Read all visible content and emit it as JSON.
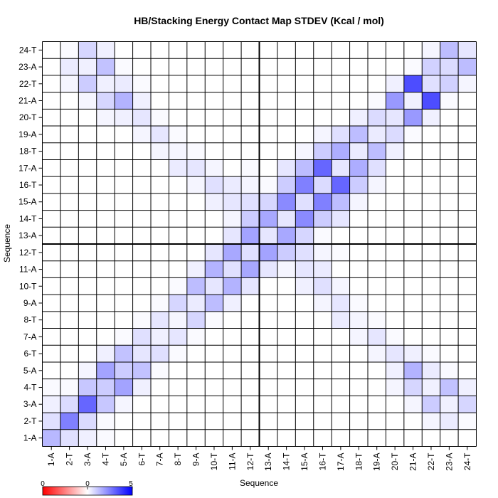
{
  "chart_data": {
    "type": "heatmap",
    "title": "HB/Stacking Energy Contact Map STDEV (Kcal / mol)",
    "xlabel": "Sequence",
    "ylabel": "Sequence",
    "labels": [
      "1-A",
      "2-T",
      "3-A",
      "4-T",
      "5-A",
      "6-T",
      "7-A",
      "8-T",
      "9-A",
      "10-T",
      "11-A",
      "12-T",
      "13-A",
      "14-T",
      "15-A",
      "16-T",
      "17-A",
      "18-T",
      "19-A",
      "20-T",
      "21-A",
      "22-T",
      "23-A",
      "24-T"
    ],
    "strand_break_after": "12-T",
    "color_scale": {
      "min": 0,
      "mid": 0,
      "max": 5,
      "tick_labels": [
        "0",
        "0",
        "5"
      ],
      "colors": [
        "#ff0000",
        "#ffffff",
        "#0000ff"
      ]
    },
    "values": [
      [
        1.4,
        0.6,
        0.3,
        0.1,
        0,
        0,
        0,
        0,
        0,
        0,
        0,
        0,
        0,
        0,
        0,
        0,
        0,
        0,
        0,
        0,
        0,
        0,
        0,
        0
      ],
      [
        0.6,
        2.5,
        0.7,
        0.1,
        0,
        0,
        0,
        0,
        0,
        0,
        0,
        0,
        0,
        0,
        0,
        0,
        0,
        0,
        0,
        0,
        0,
        0.2,
        0.4,
        0.1
      ],
      [
        0.3,
        0.7,
        3.0,
        1.1,
        0.2,
        0,
        0,
        0,
        0,
        0,
        0,
        0,
        0,
        0,
        0,
        0,
        0,
        0,
        0,
        0,
        0.2,
        1.0,
        0.3,
        0.8
      ],
      [
        0.1,
        0.1,
        1.1,
        1.0,
        1.8,
        0.3,
        0,
        0,
        0,
        0,
        0,
        0,
        0,
        0,
        0,
        0,
        0,
        0,
        0,
        0.2,
        0.8,
        0.3,
        1.2,
        0.3
      ],
      [
        0,
        0,
        0.2,
        1.8,
        1.0,
        1.2,
        0.1,
        0,
        0,
        0,
        0,
        0,
        0,
        0,
        0,
        0,
        0,
        0,
        0,
        0.3,
        1.5,
        0.4,
        0.1,
        0
      ],
      [
        0,
        0,
        0,
        0.3,
        1.2,
        0.5,
        0.6,
        0.1,
        0,
        0,
        0,
        0,
        0,
        0,
        0,
        0,
        0,
        0,
        0.2,
        0.5,
        0.3,
        0.1,
        0,
        0
      ],
      [
        0,
        0,
        0,
        0,
        0.1,
        0.6,
        0.3,
        0.5,
        0.1,
        0,
        0,
        0,
        0,
        0,
        0,
        0,
        0,
        0.2,
        0.5,
        0.1,
        0,
        0,
        0,
        0
      ],
      [
        0,
        0,
        0,
        0,
        0,
        0.1,
        0.5,
        0.2,
        0.8,
        0.1,
        0,
        0,
        0,
        0,
        0,
        0,
        0.4,
        0.2,
        0.1,
        0,
        0,
        0,
        0,
        0
      ],
      [
        0,
        0,
        0,
        0,
        0,
        0,
        0.1,
        0.8,
        0.4,
        1.3,
        0.3,
        0,
        0,
        0,
        0,
        0.2,
        0.5,
        0.1,
        0,
        0,
        0,
        0,
        0,
        0
      ],
      [
        0,
        0,
        0,
        0,
        0,
        0,
        0,
        0.1,
        1.3,
        0.5,
        1.5,
        0.5,
        0,
        0,
        0.3,
        0.6,
        0.2,
        0,
        0,
        0,
        0,
        0,
        0,
        0
      ],
      [
        0,
        0,
        0,
        0,
        0,
        0,
        0,
        0,
        0.3,
        1.5,
        0.6,
        1.7,
        0.5,
        0.2,
        0.5,
        0.4,
        0,
        0,
        0,
        0,
        0,
        0,
        0,
        0
      ],
      [
        0,
        0,
        0,
        0,
        0,
        0,
        0,
        0,
        0,
        0.5,
        1.7,
        0.6,
        1.8,
        1.0,
        0.6,
        0.2,
        0.1,
        0,
        0,
        0,
        0,
        0,
        0,
        0
      ],
      [
        0,
        0,
        0,
        0,
        0,
        0,
        0,
        0,
        0,
        0,
        0.5,
        1.8,
        0.5,
        1.7,
        0.8,
        0.1,
        0,
        0,
        0,
        0,
        0,
        0,
        0,
        0
      ],
      [
        0,
        0,
        0,
        0,
        0,
        0,
        0,
        0,
        0,
        0,
        0.2,
        1.0,
        1.7,
        0.5,
        2.3,
        1.0,
        0.5,
        0,
        0,
        0,
        0,
        0,
        0,
        0
      ],
      [
        0,
        0,
        0,
        0,
        0,
        0,
        0,
        0,
        0,
        0.3,
        0.5,
        0.6,
        0.8,
        2.3,
        0.6,
        2.5,
        1.3,
        0.2,
        0,
        0,
        0,
        0,
        0,
        0
      ],
      [
        0,
        0,
        0,
        0,
        0,
        0,
        0,
        0,
        0.2,
        0.6,
        0.4,
        0.2,
        0.1,
        1.0,
        2.5,
        0.7,
        3.0,
        1.0,
        0.2,
        0,
        0,
        0,
        0,
        0
      ],
      [
        0,
        0,
        0,
        0,
        0,
        0,
        0,
        0.4,
        0.5,
        0.2,
        0,
        0.1,
        0,
        0.5,
        1.3,
        3.0,
        0.5,
        1.6,
        0.6,
        0,
        0,
        0,
        0,
        0
      ],
      [
        0,
        0,
        0,
        0,
        0,
        0,
        0.2,
        0.2,
        0.1,
        0,
        0,
        0,
        0,
        0,
        0.2,
        1.0,
        1.6,
        0.4,
        1.3,
        0.3,
        0,
        0,
        0,
        0
      ],
      [
        0,
        0,
        0,
        0,
        0,
        0.2,
        0.5,
        0.1,
        0,
        0,
        0,
        0,
        0,
        0,
        0,
        0.2,
        0.6,
        1.3,
        0.4,
        0.7,
        0.1,
        0,
        0,
        0
      ],
      [
        0,
        0,
        0,
        0.2,
        0.3,
        0.5,
        0.1,
        0,
        0,
        0,
        0,
        0,
        0,
        0,
        0,
        0,
        0,
        0.3,
        0.7,
        0.5,
        2.0,
        0.3,
        0,
        0
      ],
      [
        0,
        0,
        0.2,
        0.8,
        1.5,
        0.3,
        0,
        0,
        0,
        0,
        0,
        0,
        0,
        0,
        0,
        0,
        0,
        0,
        0.1,
        2.0,
        0.3,
        3.5,
        0.1,
        0
      ],
      [
        0,
        0.2,
        1.0,
        0.3,
        0.4,
        0.1,
        0,
        0,
        0,
        0,
        0,
        0,
        0,
        0,
        0,
        0,
        0,
        0,
        0,
        0.3,
        3.5,
        0.6,
        0.9,
        0.2
      ],
      [
        0,
        0.4,
        0.3,
        1.2,
        0.1,
        0,
        0,
        0,
        0,
        0,
        0,
        0,
        0,
        0,
        0,
        0,
        0,
        0,
        0,
        0,
        0.1,
        0.9,
        0.7,
        1.3
      ],
      [
        0,
        0.1,
        0.8,
        0.3,
        0,
        0,
        0,
        0,
        0,
        0,
        0,
        0,
        0,
        0,
        0,
        0,
        0,
        0,
        0,
        0,
        0,
        0.2,
        1.3,
        0.5
      ]
    ]
  }
}
